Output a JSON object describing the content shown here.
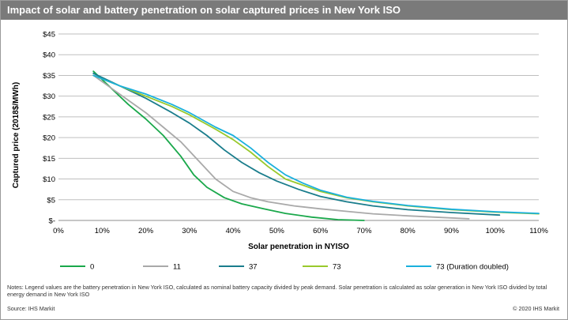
{
  "title": "Impact of solar and battery penetration on solar captured prices in New York ISO",
  "notes": "Notes: Legend values are the battery penetration in New York ISO, calculated as nominal battery capacity divided by peak demand. Solar penetration is calculated as solar generation in New York ISO divided by total energy demand in New York ISO",
  "source": "Source: IHS Markit",
  "copyright": "© 2020 IHS Markit",
  "colors": {
    "title_bg": "#7a7a7a",
    "grid": "#bfbfbf"
  },
  "chart_data": {
    "type": "line",
    "xlabel": "Solar penetration in NYISO",
    "ylabel": "Captured price (2018$/MWh)",
    "xlim": [
      0,
      110
    ],
    "ylim": [
      0,
      45
    ],
    "x_ticks": [
      "0%",
      "10%",
      "20%",
      "30%",
      "40%",
      "50%",
      "60%",
      "70%",
      "80%",
      "90%",
      "100%",
      "110%"
    ],
    "y_ticks": [
      "$-",
      "$5",
      "$10",
      "$15",
      "$20",
      "$25",
      "$30",
      "$35",
      "$40",
      "$45"
    ],
    "grid": true,
    "legend_position": "bottom",
    "series": [
      {
        "name": "0",
        "color": "#1aa84b",
        "x": [
          8,
          12,
          16,
          20,
          24,
          28,
          31,
          34,
          38,
          42,
          47,
          52,
          58,
          64,
          70
        ],
        "y": [
          36,
          32,
          28,
          24.5,
          20.5,
          15.5,
          11,
          8,
          5.5,
          4,
          2.8,
          1.7,
          0.8,
          0.2,
          0
        ]
      },
      {
        "name": "11",
        "color": "#a9a9a9",
        "x": [
          8,
          12,
          16,
          20,
          24,
          28,
          32,
          36,
          40,
          44,
          48,
          54,
          60,
          66,
          72,
          80,
          88,
          94
        ],
        "y": [
          35,
          32,
          29,
          26,
          22.5,
          19,
          14.5,
          10,
          7,
          5.5,
          4.5,
          3.5,
          2.8,
          2.2,
          1.6,
          1.1,
          0.7,
          0.4
        ]
      },
      {
        "name": "37",
        "color": "#1a7d8c",
        "x": [
          8,
          14,
          20,
          26,
          30,
          34,
          38,
          42,
          46,
          50,
          55,
          60,
          66,
          72,
          80,
          90,
          101
        ],
        "y": [
          35.5,
          32.5,
          29.5,
          26,
          23.5,
          20.5,
          17,
          14,
          11.5,
          9.5,
          7.5,
          5.8,
          4.5,
          3.5,
          2.6,
          1.9,
          1.3
        ]
      },
      {
        "name": "73",
        "color": "#99c92c",
        "x": [
          8,
          14,
          20,
          26,
          30,
          36,
          40,
          44,
          48,
          52,
          56,
          60,
          66,
          72,
          80,
          90,
          100,
          110
        ],
        "y": [
          35,
          32.5,
          30,
          27.5,
          25.5,
          22,
          19.5,
          16.5,
          13,
          10,
          8.5,
          7,
          5.5,
          4.5,
          3.5,
          2.6,
          2,
          1.6
        ]
      },
      {
        "name": "73 (Duration doubled)",
        "color": "#1ab0dd",
        "x": [
          8,
          14,
          20,
          26,
          30,
          36,
          40,
          44,
          48,
          52,
          56,
          60,
          66,
          72,
          80,
          90,
          100,
          110
        ],
        "y": [
          35,
          32.5,
          30.5,
          28,
          26,
          22.5,
          20.5,
          17.5,
          14,
          11,
          9,
          7.3,
          5.6,
          4.6,
          3.6,
          2.7,
          2.1,
          1.7
        ]
      }
    ]
  }
}
